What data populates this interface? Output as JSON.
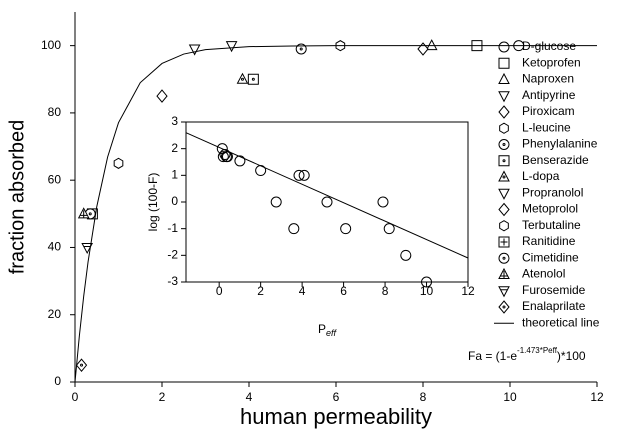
{
  "chart_data": [
    {
      "type": "scatter",
      "xlabel": "human permeability",
      "ylabel": "fraction absorbed",
      "xlim": [
        0,
        12
      ],
      "ylim": [
        0,
        110
      ],
      "xticks": [
        0,
        2,
        4,
        6,
        8,
        10,
        12
      ],
      "yticks": [
        0,
        20,
        40,
        60,
        80,
        100
      ],
      "color": "#000000",
      "formula": {
        "prefix": "Fa = (1-e",
        "exponent": "-1.473*Peff",
        "suffix": ")*100"
      },
      "series": [
        {
          "name": "D-glucose",
          "marker": "circle",
          "x": [
            10.2
          ],
          "values": [
            100
          ]
        },
        {
          "name": "Ketoprofen",
          "marker": "square",
          "x": [
            9.24
          ],
          "values": [
            100
          ]
        },
        {
          "name": "Naproxen",
          "marker": "triangle",
          "x": [
            8.2
          ],
          "values": [
            100
          ]
        },
        {
          "name": "Antipyrine",
          "marker": "triangle-down",
          "x": [
            3.6
          ],
          "values": [
            100
          ]
        },
        {
          "name": "Piroxicam",
          "marker": "diamond",
          "x": [
            8.0
          ],
          "values": [
            99
          ]
        },
        {
          "name": "L-leucine",
          "marker": "hexagon",
          "x": [
            6.1
          ],
          "values": [
            100
          ]
        },
        {
          "name": "Phenylalanine",
          "marker": "circle-dot",
          "x": [
            5.2
          ],
          "values": [
            99
          ]
        },
        {
          "name": "Benserazide",
          "marker": "square-dot",
          "x": [
            4.1
          ],
          "values": [
            90
          ]
        },
        {
          "name": "L-dopa",
          "marker": "triangle-dot",
          "x": [
            3.85
          ],
          "values": [
            90
          ]
        },
        {
          "name": "Propranolol",
          "marker": "triangle-down",
          "x": [
            2.75
          ],
          "values": [
            99
          ]
        },
        {
          "name": "Metoprolol",
          "marker": "diamond",
          "x": [
            2.0
          ],
          "values": [
            85
          ]
        },
        {
          "name": "Terbutaline",
          "marker": "hexagon",
          "x": [
            1.0
          ],
          "values": [
            65
          ]
        },
        {
          "name": "Ranitidine",
          "marker": "square-plus",
          "x": [
            0.4
          ],
          "values": [
            50
          ]
        },
        {
          "name": "Cimetidine",
          "marker": "circle-dot",
          "x": [
            0.35
          ],
          "values": [
            50
          ]
        },
        {
          "name": "Atenolol",
          "marker": "triangle-plus",
          "x": [
            0.2
          ],
          "values": [
            50
          ]
        },
        {
          "name": "Furosemide",
          "marker": "triangle-down-bar",
          "x": [
            0.28
          ],
          "values": [
            40
          ]
        },
        {
          "name": "Enalaprilate",
          "marker": "diamond-dot",
          "x": [
            0.15
          ],
          "values": [
            5
          ]
        },
        {
          "name": "theoretical line",
          "marker": "line",
          "x": [
            0,
            0.1,
            0.2,
            0.3,
            0.5,
            0.75,
            1,
            1.5,
            2,
            2.5,
            3,
            4,
            5,
            6,
            8,
            10,
            12
          ],
          "values": [
            0,
            13.7,
            25.5,
            35.7,
            52.1,
            66.9,
            77.1,
            89.0,
            94.7,
            97.5,
            98.8,
            99.7,
            99.9,
            100,
            100,
            100,
            100
          ]
        }
      ]
    },
    {
      "type": "scatter",
      "ylabel": "log (100-F)",
      "xlabel": {
        "base": "P",
        "sub": "eff"
      },
      "xlim": [
        -1.6,
        12
      ],
      "ylim": [
        -3,
        3
      ],
      "xticks": [
        0,
        2,
        4,
        6,
        8,
        10,
        12
      ],
      "yticks": [
        -3,
        -2,
        -1,
        0,
        1,
        2,
        3
      ],
      "color": "#000000",
      "series": [
        {
          "marker": "circle",
          "x": [
            0.15,
            0.2,
            0.28,
            0.35,
            0.4,
            1.0,
            2.0,
            2.75,
            3.6,
            3.85,
            4.1,
            5.2,
            6.1,
            7.9,
            8.2,
            9.0,
            10.0
          ],
          "values": [
            2.0,
            1.7,
            1.78,
            1.7,
            1.7,
            1.54,
            1.18,
            0.0,
            -1.0,
            1.0,
            1.0,
            0.0,
            -1.0,
            0.0,
            -1.0,
            -2.0,
            -3.0
          ]
        },
        {
          "marker": "line",
          "x": [
            -1.6,
            12
          ],
          "values": [
            2.6,
            -2.1
          ]
        }
      ]
    }
  ]
}
